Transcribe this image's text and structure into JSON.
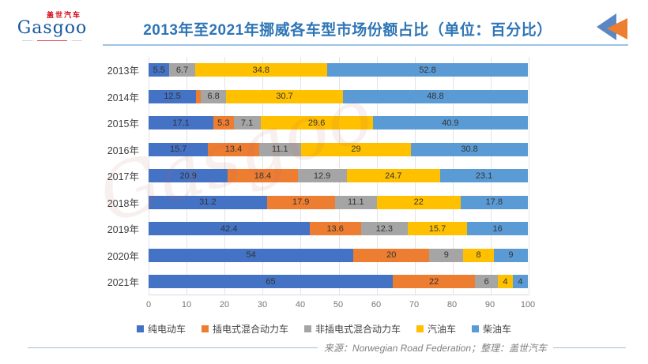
{
  "header": {
    "logo": {
      "brand": "Gasgoo",
      "brand_cn": "盖世汽车"
    },
    "title": "2013年至2021年挪威各车型市场份额占比（单位：百分比）",
    "accent_color": "#2E75B6",
    "underline_color": "#9DC3E6"
  },
  "chart_data": {
    "type": "bar",
    "orientation": "horizontal",
    "stacked": true,
    "title": "2013年至2021年挪威各车型市场份额占比",
    "unit": "百分比",
    "categories": [
      "2013年",
      "2014年",
      "2015年",
      "2016年",
      "2017年",
      "2018年",
      "2019年",
      "2020年",
      "2021年"
    ],
    "series": [
      {
        "name": "纯电动车",
        "color": "#4472C4",
        "values": [
          5.5,
          12.5,
          17.1,
          15.7,
          20.9,
          31.2,
          42.4,
          54,
          65
        ]
      },
      {
        "name": "插电式混合动力车",
        "color": "#ED7D31",
        "values": [
          0,
          1.2,
          5.3,
          13.4,
          18.4,
          17.9,
          13.6,
          20,
          22
        ]
      },
      {
        "name": "非插电式混合动力车",
        "color": "#A5A5A5",
        "values": [
          6.7,
          6.8,
          7.1,
          11.1,
          12.9,
          11.1,
          12.3,
          9,
          6
        ]
      },
      {
        "name": "汽油车",
        "color": "#FFC000",
        "values": [
          34.8,
          30.7,
          29.6,
          29,
          24.7,
          22,
          15.7,
          8,
          4
        ]
      },
      {
        "name": "柴油车",
        "color": "#5B9BD5",
        "values": [
          52.8,
          48.8,
          40.9,
          30.8,
          23.1,
          17.8,
          16,
          9,
          4
        ]
      }
    ],
    "xlim": [
      0,
      100
    ],
    "x_ticks": [
      0,
      10,
      20,
      30,
      40,
      50,
      60,
      70,
      80,
      90,
      100
    ],
    "grid": true,
    "legend_position": "bottom",
    "min_label_value": 2,
    "watermark": "Gasgoo"
  },
  "footer": {
    "source": "来源：Norwegian Road Federation；整理：盖世汽车"
  }
}
